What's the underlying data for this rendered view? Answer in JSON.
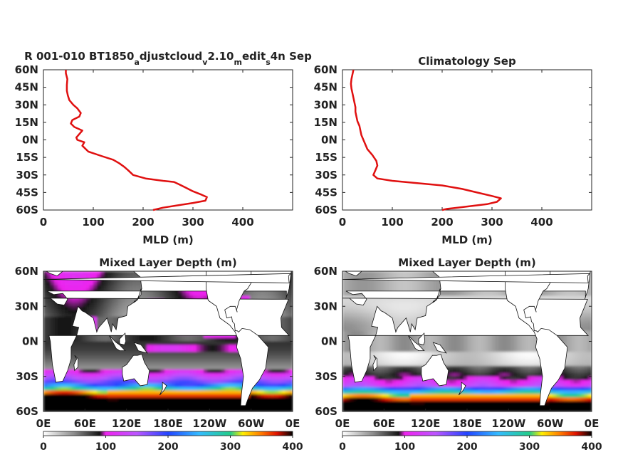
{
  "colors": {
    "profile_line": "#e01010",
    "land": "#ffffff",
    "frame": "#222222"
  },
  "colormap": [
    {
      "v": 0,
      "c": "#ffffff"
    },
    {
      "v": 50,
      "c": "#8a8a8a"
    },
    {
      "v": 90,
      "c": "#151515"
    },
    {
      "v": 100,
      "c": "#ee22ee"
    },
    {
      "v": 150,
      "c": "#bb55ff"
    },
    {
      "v": 200,
      "c": "#2244ff"
    },
    {
      "v": 250,
      "c": "#33bbff"
    },
    {
      "v": 300,
      "c": "#22cc88"
    },
    {
      "v": 320,
      "c": "#ffee00"
    },
    {
      "v": 350,
      "c": "#ff7700"
    },
    {
      "v": 375,
      "c": "#dd1100"
    },
    {
      "v": 400,
      "c": "#000000"
    }
  ],
  "chart_data": [
    {
      "type": "line",
      "title": "R 001-010 BT1850_adjustcloud_v2.10_medit_s4n Sep",
      "title_parts": [
        {
          "t": "R 001-010 BT1850",
          "sub": false
        },
        {
          "t": "a",
          "sub": true
        },
        {
          "t": "djustcloud",
          "sub": false
        },
        {
          "t": "v",
          "sub": true
        },
        {
          "t": "2.10",
          "sub": false
        },
        {
          "t": "m",
          "sub": true
        },
        {
          "t": "edit",
          "sub": false
        },
        {
          "t": "s",
          "sub": true
        },
        {
          "t": "4n Sep",
          "sub": false
        }
      ],
      "xlabel": "MLD (m)",
      "xlim": [
        0,
        500
      ],
      "ylim": [
        -60,
        60
      ],
      "xticks": [
        0,
        100,
        200,
        300,
        400
      ],
      "yticks": [
        60,
        45,
        30,
        15,
        0,
        -15,
        -30,
        -45,
        -60
      ],
      "yticklabels": [
        "60N",
        "45N",
        "30N",
        "15N",
        "0N",
        "15S",
        "30S",
        "45S",
        "60S"
      ],
      "series": [
        {
          "x": [
            45,
            45,
            48,
            47,
            47,
            49,
            52,
            60,
            68,
            75,
            72,
            58,
            55,
            62,
            78,
            72,
            66,
            68,
            82,
            78,
            90,
            118,
            140,
            152,
            162,
            170,
            180,
            205,
            240,
            262,
            272,
            286,
            300,
            318,
            328,
            325,
            300,
            270,
            240,
            220
          ],
          "y": [
            60,
            57,
            52,
            47,
            42,
            38,
            34,
            30,
            27,
            23,
            20,
            17,
            14,
            11,
            8,
            5,
            2,
            0,
            -2,
            -5,
            -10,
            -14,
            -17,
            -20,
            -23,
            -26,
            -30,
            -33,
            -35,
            -36,
            -38,
            -41,
            -44,
            -47,
            -49,
            -52,
            -54,
            -56,
            -58,
            -60
          ]
        }
      ]
    },
    {
      "type": "line",
      "title": "Climatology Sep",
      "xlabel": "MLD (m)",
      "xlim": [
        0,
        500
      ],
      "ylim": [
        -60,
        60
      ],
      "xticks": [
        0,
        100,
        200,
        300,
        400
      ],
      "yticks": [
        60,
        45,
        30,
        15,
        0,
        -15,
        -30,
        -45,
        -60
      ],
      "yticklabels": [
        "60N",
        "45N",
        "30N",
        "15N",
        "0N",
        "15S",
        "30S",
        "45S",
        "60S"
      ],
      "series": [
        {
          "x": [
            22,
            20,
            18,
            17,
            18,
            20,
            22,
            24,
            26,
            26,
            28,
            30,
            34,
            36,
            38,
            42,
            50,
            60,
            68,
            70,
            66,
            62,
            70,
            100,
            150,
            200,
            240,
            270,
            300,
            318,
            310,
            290,
            250,
            210,
            200
          ],
          "y": [
            60,
            56,
            52,
            48,
            44,
            40,
            36,
            32,
            28,
            24,
            20,
            16,
            12,
            8,
            4,
            0,
            -8,
            -13,
            -18,
            -22,
            -26,
            -30,
            -33,
            -35,
            -37,
            -39,
            -42,
            -45,
            -48,
            -50,
            -53,
            -55,
            -57,
            -59,
            -60
          ]
        }
      ]
    },
    {
      "type": "heatmap",
      "title": "Mixed Layer Depth (m)",
      "variant": "model",
      "yticklabels": [
        "60N",
        "30N",
        "0N",
        "30S",
        "60S"
      ],
      "colorbar_lon_labels": [
        "0E",
        "60E",
        "120E",
        "180E",
        "120W",
        "60W",
        "0E"
      ],
      "colorbar_ticks": [
        0,
        100,
        200,
        300,
        400
      ],
      "clim": [
        0,
        400
      ]
    },
    {
      "type": "heatmap",
      "title": "Mixed Layer Depth (m)",
      "variant": "climatology",
      "yticklabels": [
        "60N",
        "30N",
        "0N",
        "30S",
        "60S"
      ],
      "colorbar_lon_labels": [
        "0E",
        "60E",
        "120E",
        "180E",
        "120W",
        "60W",
        "0E"
      ],
      "colorbar_ticks": [
        0,
        100,
        200,
        300,
        400
      ],
      "clim": [
        0,
        400
      ]
    }
  ]
}
